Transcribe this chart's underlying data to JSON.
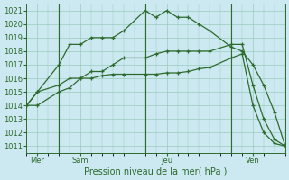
{
  "xlabel": "Pression niveau de la mer( hPa )",
  "bg_color": "#cce8f0",
  "grid_color": "#99ccbb",
  "line_color": "#2d6a2d",
  "ylim": [
    1010.5,
    1021.5
  ],
  "yticks": [
    1011,
    1012,
    1013,
    1014,
    1015,
    1016,
    1017,
    1018,
    1019,
    1020,
    1021
  ],
  "xlim": [
    0,
    72
  ],
  "xtick_positions": [
    3,
    15,
    39,
    63
  ],
  "xtick_labels": [
    "Mer",
    "Sam",
    "Jeu",
    "Ven"
  ],
  "vlines": [
    9,
    33,
    57
  ],
  "s1_x": [
    0,
    3,
    9,
    12,
    15,
    18,
    21,
    24,
    27,
    33,
    36,
    39,
    42,
    45,
    48,
    51,
    57,
    60,
    63,
    66,
    69,
    72
  ],
  "s1_y": [
    1014,
    1015,
    1017,
    1018.5,
    1018.5,
    1019,
    1019,
    1019,
    1019.5,
    1021,
    1020.5,
    1021,
    1020.5,
    1020.5,
    1020,
    1019.5,
    1018.3,
    1018,
    1017,
    1015.5,
    1013.5,
    1011
  ],
  "s2_x": [
    0,
    3,
    9,
    12,
    15,
    18,
    21,
    24,
    27,
    33,
    36,
    39,
    42,
    45,
    48,
    51,
    57,
    60,
    63,
    66,
    69,
    72
  ],
  "s2_y": [
    1014,
    1015,
    1015.5,
    1016,
    1016,
    1016.5,
    1016.5,
    1017,
    1017.5,
    1017.5,
    1017.8,
    1018,
    1018,
    1018,
    1018,
    1018,
    1018.5,
    1018.5,
    1015.5,
    1013,
    1011.5,
    1011
  ],
  "s3_x": [
    0,
    3,
    9,
    12,
    15,
    18,
    21,
    24,
    27,
    33,
    36,
    39,
    42,
    45,
    48,
    51,
    57,
    60,
    63,
    66,
    69,
    72
  ],
  "s3_y": [
    1014,
    1014,
    1015,
    1015.3,
    1016,
    1016,
    1016.2,
    1016.3,
    1016.3,
    1016.3,
    1016.3,
    1016.4,
    1016.4,
    1016.5,
    1016.7,
    1016.8,
    1017.5,
    1017.8,
    1014,
    1012,
    1011.2,
    1011
  ]
}
